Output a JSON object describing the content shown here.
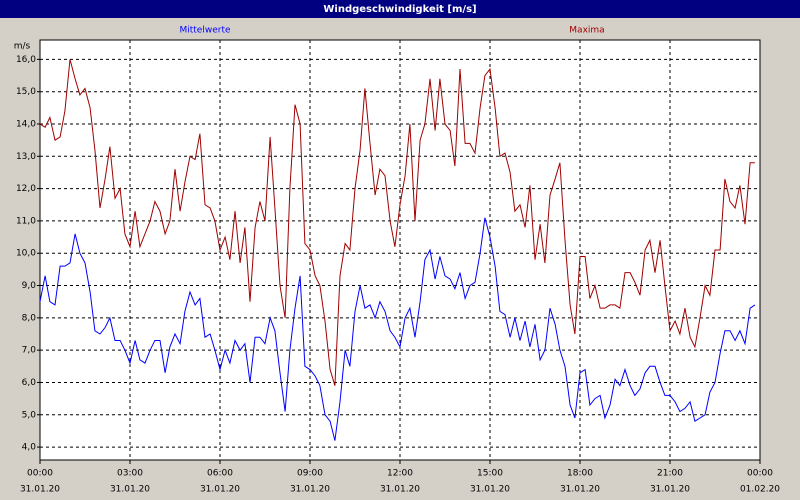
{
  "chart_data": {
    "type": "line",
    "title": "Windgeschwindigkeit [m/s]",
    "y_unit": "m/s",
    "x": [
      0,
      0.17,
      0.33,
      0.5,
      0.67,
      0.83,
      1,
      1.17,
      1.33,
      1.5,
      1.67,
      1.83,
      2,
      2.17,
      2.33,
      2.5,
      2.67,
      2.83,
      3,
      3.17,
      3.33,
      3.5,
      3.67,
      3.83,
      4,
      4.17,
      4.33,
      4.5,
      4.67,
      4.83,
      5,
      5.17,
      5.33,
      5.5,
      5.67,
      5.83,
      6,
      6.17,
      6.33,
      6.5,
      6.67,
      6.83,
      7,
      7.17,
      7.33,
      7.5,
      7.67,
      7.83,
      8,
      8.17,
      8.33,
      8.5,
      8.67,
      8.83,
      9,
      9.17,
      9.33,
      9.5,
      9.67,
      9.83,
      10,
      10.17,
      10.33,
      10.5,
      10.67,
      10.83,
      11,
      11.17,
      11.33,
      11.5,
      11.67,
      11.83,
      12,
      12.17,
      12.33,
      12.5,
      12.67,
      12.83,
      13,
      13.17,
      13.33,
      13.5,
      13.67,
      13.83,
      14,
      14.17,
      14.33,
      14.5,
      14.67,
      14.83,
      15,
      15.17,
      15.33,
      15.5,
      15.67,
      15.83,
      16,
      16.17,
      16.33,
      16.5,
      16.67,
      16.83,
      17,
      17.17,
      17.33,
      17.5,
      17.67,
      17.83,
      18,
      18.17,
      18.33,
      18.5,
      18.67,
      18.83,
      19,
      19.17,
      19.33,
      19.5,
      19.67,
      19.83,
      20,
      20.17,
      20.33,
      20.5,
      20.67,
      20.83,
      21,
      21.17,
      21.33,
      21.5,
      21.67,
      21.83,
      22,
      22.17,
      22.33,
      22.5,
      22.67,
      22.83,
      23,
      23.17,
      23.33,
      23.5,
      23.67,
      23.83
    ],
    "series": [
      {
        "name": "Mittelwerte",
        "color": "#0000ff",
        "values": [
          8.5,
          9.3,
          8.5,
          8.4,
          9.6,
          9.6,
          9.7,
          10.6,
          10.0,
          9.7,
          8.8,
          7.6,
          7.5,
          7.7,
          8.0,
          7.3,
          7.3,
          7.0,
          6.6,
          7.3,
          6.7,
          6.6,
          7.0,
          7.3,
          7.3,
          6.3,
          7.1,
          7.5,
          7.2,
          8.2,
          8.8,
          8.4,
          8.6,
          7.4,
          7.5,
          7.0,
          6.4,
          7.0,
          6.6,
          7.3,
          7.0,
          7.2,
          6.0,
          7.4,
          7.4,
          7.2,
          8.0,
          7.6,
          6.3,
          5.1,
          7.0,
          8.3,
          9.3,
          6.5,
          6.4,
          6.2,
          5.9,
          5.0,
          4.8,
          4.2,
          5.4,
          7.0,
          6.5,
          8.2,
          9.0,
          8.3,
          8.4,
          8.0,
          8.5,
          8.2,
          7.6,
          7.4,
          7.1,
          8.0,
          8.3,
          7.4,
          8.5,
          9.8,
          10.1,
          9.2,
          9.9,
          9.3,
          9.2,
          8.9,
          9.4,
          8.6,
          9.0,
          9.1,
          10.0,
          11.1,
          10.5,
          9.6,
          8.2,
          8.1,
          7.4,
          8.0,
          7.3,
          7.9,
          7.1,
          7.8,
          6.7,
          7.0,
          8.3,
          7.8,
          7.0,
          6.5,
          5.3,
          4.9,
          6.3,
          6.4,
          5.3,
          5.5,
          5.6,
          4.9,
          5.3,
          6.1,
          5.9,
          6.4,
          5.9,
          5.6,
          5.8,
          6.3,
          6.5,
          6.5,
          6.0,
          5.6,
          5.6,
          5.4,
          5.1,
          5.2,
          5.4,
          4.8,
          4.9,
          5.0,
          5.7,
          6.0,
          6.9,
          7.6,
          7.6,
          7.3,
          7.6,
          7.2,
          8.3,
          8.4
        ]
      },
      {
        "name": "Maxima",
        "color": "#a00000",
        "values": [
          14.0,
          13.9,
          14.2,
          13.5,
          13.6,
          14.4,
          16.0,
          15.4,
          14.9,
          15.1,
          14.5,
          13.2,
          11.4,
          12.3,
          13.3,
          11.7,
          12.0,
          10.6,
          10.2,
          11.3,
          10.2,
          10.6,
          11.0,
          11.6,
          11.3,
          10.6,
          11.0,
          12.6,
          11.3,
          12.2,
          13.0,
          12.9,
          13.7,
          11.5,
          11.4,
          11.0,
          10.1,
          10.5,
          9.8,
          11.3,
          9.7,
          10.8,
          8.5,
          10.8,
          11.6,
          11.0,
          13.6,
          11.4,
          9.0,
          8.0,
          12.0,
          14.6,
          14.0,
          10.3,
          10.1,
          9.3,
          9.0,
          7.9,
          6.4,
          5.9,
          9.3,
          10.3,
          10.1,
          12.0,
          13.2,
          15.1,
          13.4,
          11.8,
          12.6,
          12.4,
          11.0,
          10.2,
          11.5,
          12.4,
          14.0,
          11.0,
          13.5,
          14.0,
          15.4,
          13.8,
          15.4,
          14.0,
          13.8,
          12.7,
          15.7,
          13.4,
          13.4,
          13.1,
          14.5,
          15.5,
          15.7,
          14.5,
          13.0,
          13.1,
          12.5,
          11.3,
          11.5,
          10.8,
          12.1,
          9.8,
          10.9,
          9.7,
          11.8,
          12.3,
          12.8,
          10.4,
          8.4,
          7.5,
          9.9,
          9.9,
          8.6,
          9.0,
          8.3,
          8.3,
          8.4,
          8.4,
          8.3,
          9.4,
          9.4,
          9.1,
          8.7,
          10.1,
          10.4,
          9.4,
          10.4,
          9.0,
          7.6,
          7.9,
          7.5,
          8.3,
          7.4,
          7.1,
          8.0,
          9.0,
          8.7,
          10.1,
          10.1,
          12.3,
          11.6,
          11.4,
          12.1,
          10.9,
          12.8,
          12.8
        ]
      }
    ],
    "xlim": [
      0,
      24
    ],
    "xticks": [
      {
        "value": 0,
        "label": "00:00"
      },
      {
        "value": 3,
        "label": "03:00"
      },
      {
        "value": 6,
        "label": "06:00"
      },
      {
        "value": 9,
        "label": "09:00"
      },
      {
        "value": 12,
        "label": "12:00"
      },
      {
        "value": 15,
        "label": "15:00"
      },
      {
        "value": 18,
        "label": "18:00"
      },
      {
        "value": 21,
        "label": "21:00"
      },
      {
        "value": 24,
        "label": "00:00"
      }
    ],
    "xtick_dates": [
      "31.01.20",
      "31.01.20",
      "31.01.20",
      "31.01.20",
      "31.01.20",
      "31.01.20",
      "31.01.20",
      "31.01.20",
      "01.02.20"
    ],
    "ylim": [
      3.6,
      16.6
    ],
    "yticks": [
      {
        "value": 4,
        "label": "4,0"
      },
      {
        "value": 5,
        "label": "5,0"
      },
      {
        "value": 6,
        "label": "6,0"
      },
      {
        "value": 7,
        "label": "7,0"
      },
      {
        "value": 8,
        "label": "8,0"
      },
      {
        "value": 9,
        "label": "9,0"
      },
      {
        "value": 10,
        "label": "10,0"
      },
      {
        "value": 11,
        "label": "11,0"
      },
      {
        "value": 12,
        "label": "12,0"
      },
      {
        "value": 13,
        "label": "13,0"
      },
      {
        "value": 14,
        "label": "14,0"
      },
      {
        "value": 15,
        "label": "15,0"
      },
      {
        "value": 16,
        "label": "16,0"
      }
    ],
    "grid": true
  }
}
